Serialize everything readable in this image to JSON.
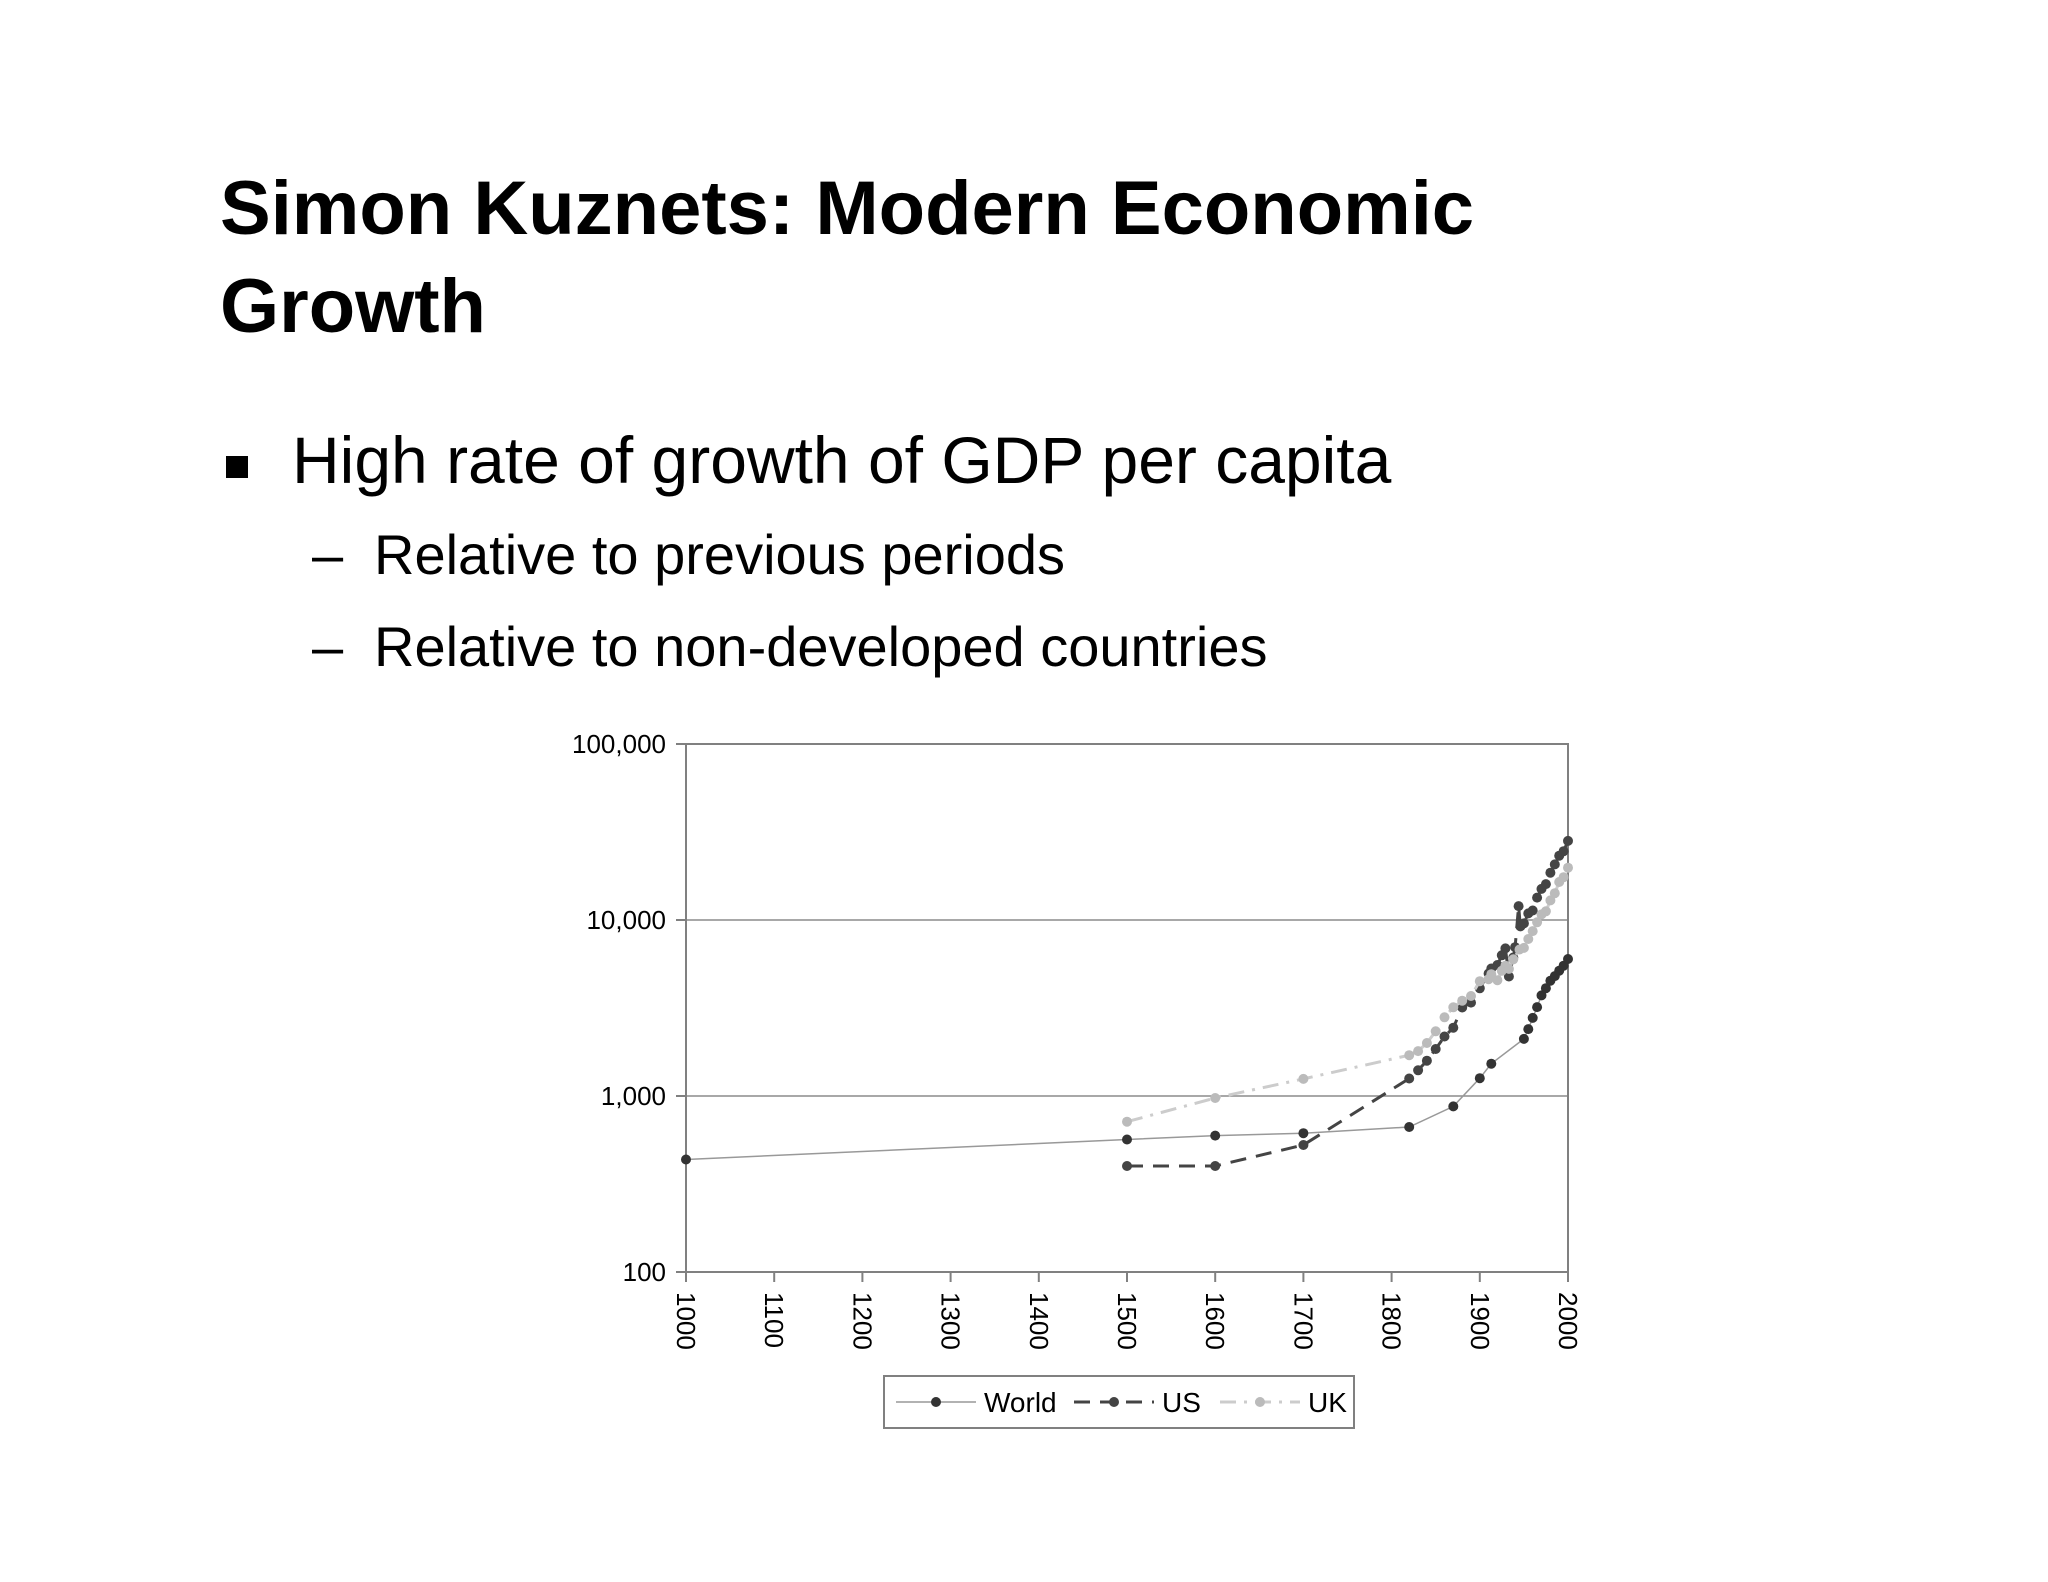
{
  "slide": {
    "title": "Simon Kuznets: Modern Economic Growth",
    "bullet": "High rate of growth of GDP per capita",
    "sub_dash": "–",
    "sub_bullets": [
      "Relative to previous periods",
      "Relative to non-developed countries"
    ]
  },
  "chart_data": {
    "type": "line",
    "title": "",
    "xlabel": "",
    "ylabel": "",
    "y_scale": "log",
    "xlim": [
      1000,
      2000
    ],
    "ylim": [
      100,
      100000
    ],
    "x_ticks": [
      "1000",
      "1100",
      "1200",
      "1300",
      "1400",
      "1500",
      "1600",
      "1700",
      "1800",
      "1900",
      "2000"
    ],
    "y_ticks": [
      "100",
      "1,000",
      "10,000",
      "100,000"
    ],
    "grid": "horizontal",
    "legend_position": "bottom",
    "series": [
      {
        "name": "World",
        "color": "#333333",
        "line_color": "#999999",
        "dash": "solid",
        "x": [
          1000,
          1500,
          1600,
          1700,
          1820,
          1870,
          1900,
          1913,
          1950,
          1955,
          1960,
          1965,
          1970,
          1975,
          1980,
          1985,
          1990,
          1995,
          2000
        ],
        "y": [
          436,
          566,
          596,
          615,
          667,
          873,
          1262,
          1526,
          2111,
          2400,
          2777,
          3200,
          3729,
          4100,
          4519,
          4800,
          5150,
          5500,
          6000
        ]
      },
      {
        "name": "US",
        "color": "#444444",
        "line_color": "#444444",
        "dash": "dashed",
        "x": [
          1500,
          1600,
          1700,
          1820,
          1830,
          1840,
          1850,
          1860,
          1870,
          1880,
          1890,
          1900,
          1910,
          1913,
          1920,
          1925,
          1929,
          1933,
          1938,
          1940,
          1944,
          1946,
          1950,
          1955,
          1960,
          1965,
          1970,
          1975,
          1980,
          1985,
          1990,
          1995,
          2000
        ],
        "y": [
          400,
          400,
          527,
          1257,
          1400,
          1588,
          1849,
          2178,
          2445,
          3184,
          3392,
          4091,
          4964,
          5301,
          5552,
          6300,
          6899,
          4777,
          6126,
          7010,
          12000,
          9200,
          9561,
          10900,
          11328,
          13400,
          15030,
          16000,
          18577,
          20700,
          23201,
          24600,
          28129
        ]
      },
      {
        "name": "UK",
        "color": "#bbbbbb",
        "line_color": "#cccccc",
        "dash": "dashdot",
        "x": [
          1500,
          1600,
          1700,
          1820,
          1830,
          1840,
          1850,
          1860,
          1870,
          1880,
          1890,
          1900,
          1910,
          1913,
          1920,
          1925,
          1929,
          1933,
          1938,
          1945,
          1950,
          1955,
          1960,
          1965,
          1970,
          1975,
          1980,
          1985,
          1990,
          1995,
          2000
        ],
        "y": [
          714,
          974,
          1250,
          1706,
          1800,
          2000,
          2330,
          2800,
          3190,
          3477,
          3700,
          4492,
          4611,
          4921,
          4548,
          5144,
          5503,
          5277,
          5983,
          6800,
          6939,
          7800,
          8645,
          9700,
          10767,
          11200,
          12931,
          14200,
          16430,
          17500,
          19817
        ]
      }
    ]
  }
}
